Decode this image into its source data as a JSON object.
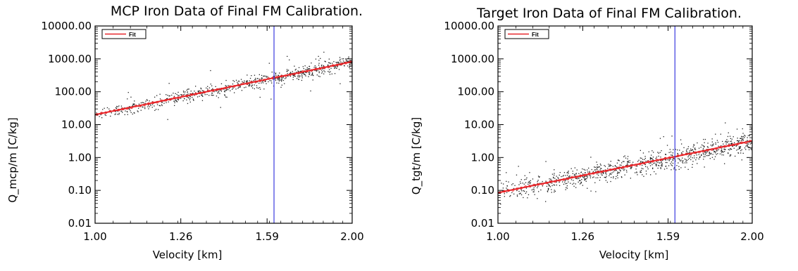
{
  "chart_data": [
    {
      "type": "scatter",
      "title": "MCP Iron Data of Final FM Calibration.",
      "xlabel": "Velocity [km]",
      "ylabel": "Q_mcp/m [C/kg]",
      "x_scale": "log",
      "y_scale": "log",
      "xlim": [
        1.0,
        2.0
      ],
      "ylim": [
        0.01,
        10000
      ],
      "x_ticks": [
        "1.00",
        "1.26",
        "1.59",
        "2.00"
      ],
      "y_ticks": [
        "0.01",
        "0.10",
        "1.00",
        "10.00",
        "100.00",
        "1000.00",
        "10000.00"
      ],
      "legend": {
        "position": "top-left",
        "entries": [
          {
            "label": "Fit",
            "color": "#e8262a"
          }
        ]
      },
      "fit": {
        "name": "Fit",
        "color": "#e8262a",
        "x": [
          1.0,
          2.0
        ],
        "y": [
          20,
          820
        ]
      },
      "vline": {
        "x": 1.62,
        "color": "#3a3adf"
      },
      "scatter": {
        "color": "#222222",
        "n": 700,
        "x_range": [
          1.0,
          2.0
        ],
        "spread_dex": 0.1,
        "outlier_fraction": 0.05
      },
      "colors": {
        "fit": "#e8262a",
        "vline": "#3a3adf",
        "points": "#222222"
      }
    },
    {
      "type": "scatter",
      "title": "Target Iron Data of Final FM Calibration.",
      "xlabel": "Velocity [km]",
      "ylabel": "Q_tgt/m [C/kg]",
      "x_scale": "log",
      "y_scale": "log",
      "xlim": [
        1.0,
        2.0
      ],
      "ylim": [
        0.01,
        10000
      ],
      "x_ticks": [
        "1.00",
        "1.26",
        "1.59",
        "2.00"
      ],
      "y_ticks": [
        "0.01",
        "0.10",
        "1.00",
        "10.00",
        "100.00",
        "1000.00",
        "10000.00"
      ],
      "legend": {
        "position": "top-left",
        "entries": [
          {
            "label": "Fit",
            "color": "#e8262a"
          }
        ]
      },
      "fit": {
        "name": "Fit",
        "color": "#e8262a",
        "x": [
          1.0,
          2.0
        ],
        "y": [
          0.085,
          3.2
        ]
      },
      "vline": {
        "x": 1.62,
        "color": "#3a3adf"
      },
      "scatter": {
        "color": "#222222",
        "n": 900,
        "x_range": [
          1.0,
          2.0
        ],
        "spread_dex": 0.16,
        "outlier_fraction": 0.05
      },
      "colors": {
        "fit": "#e8262a",
        "vline": "#3a3adf",
        "points": "#222222"
      }
    }
  ]
}
